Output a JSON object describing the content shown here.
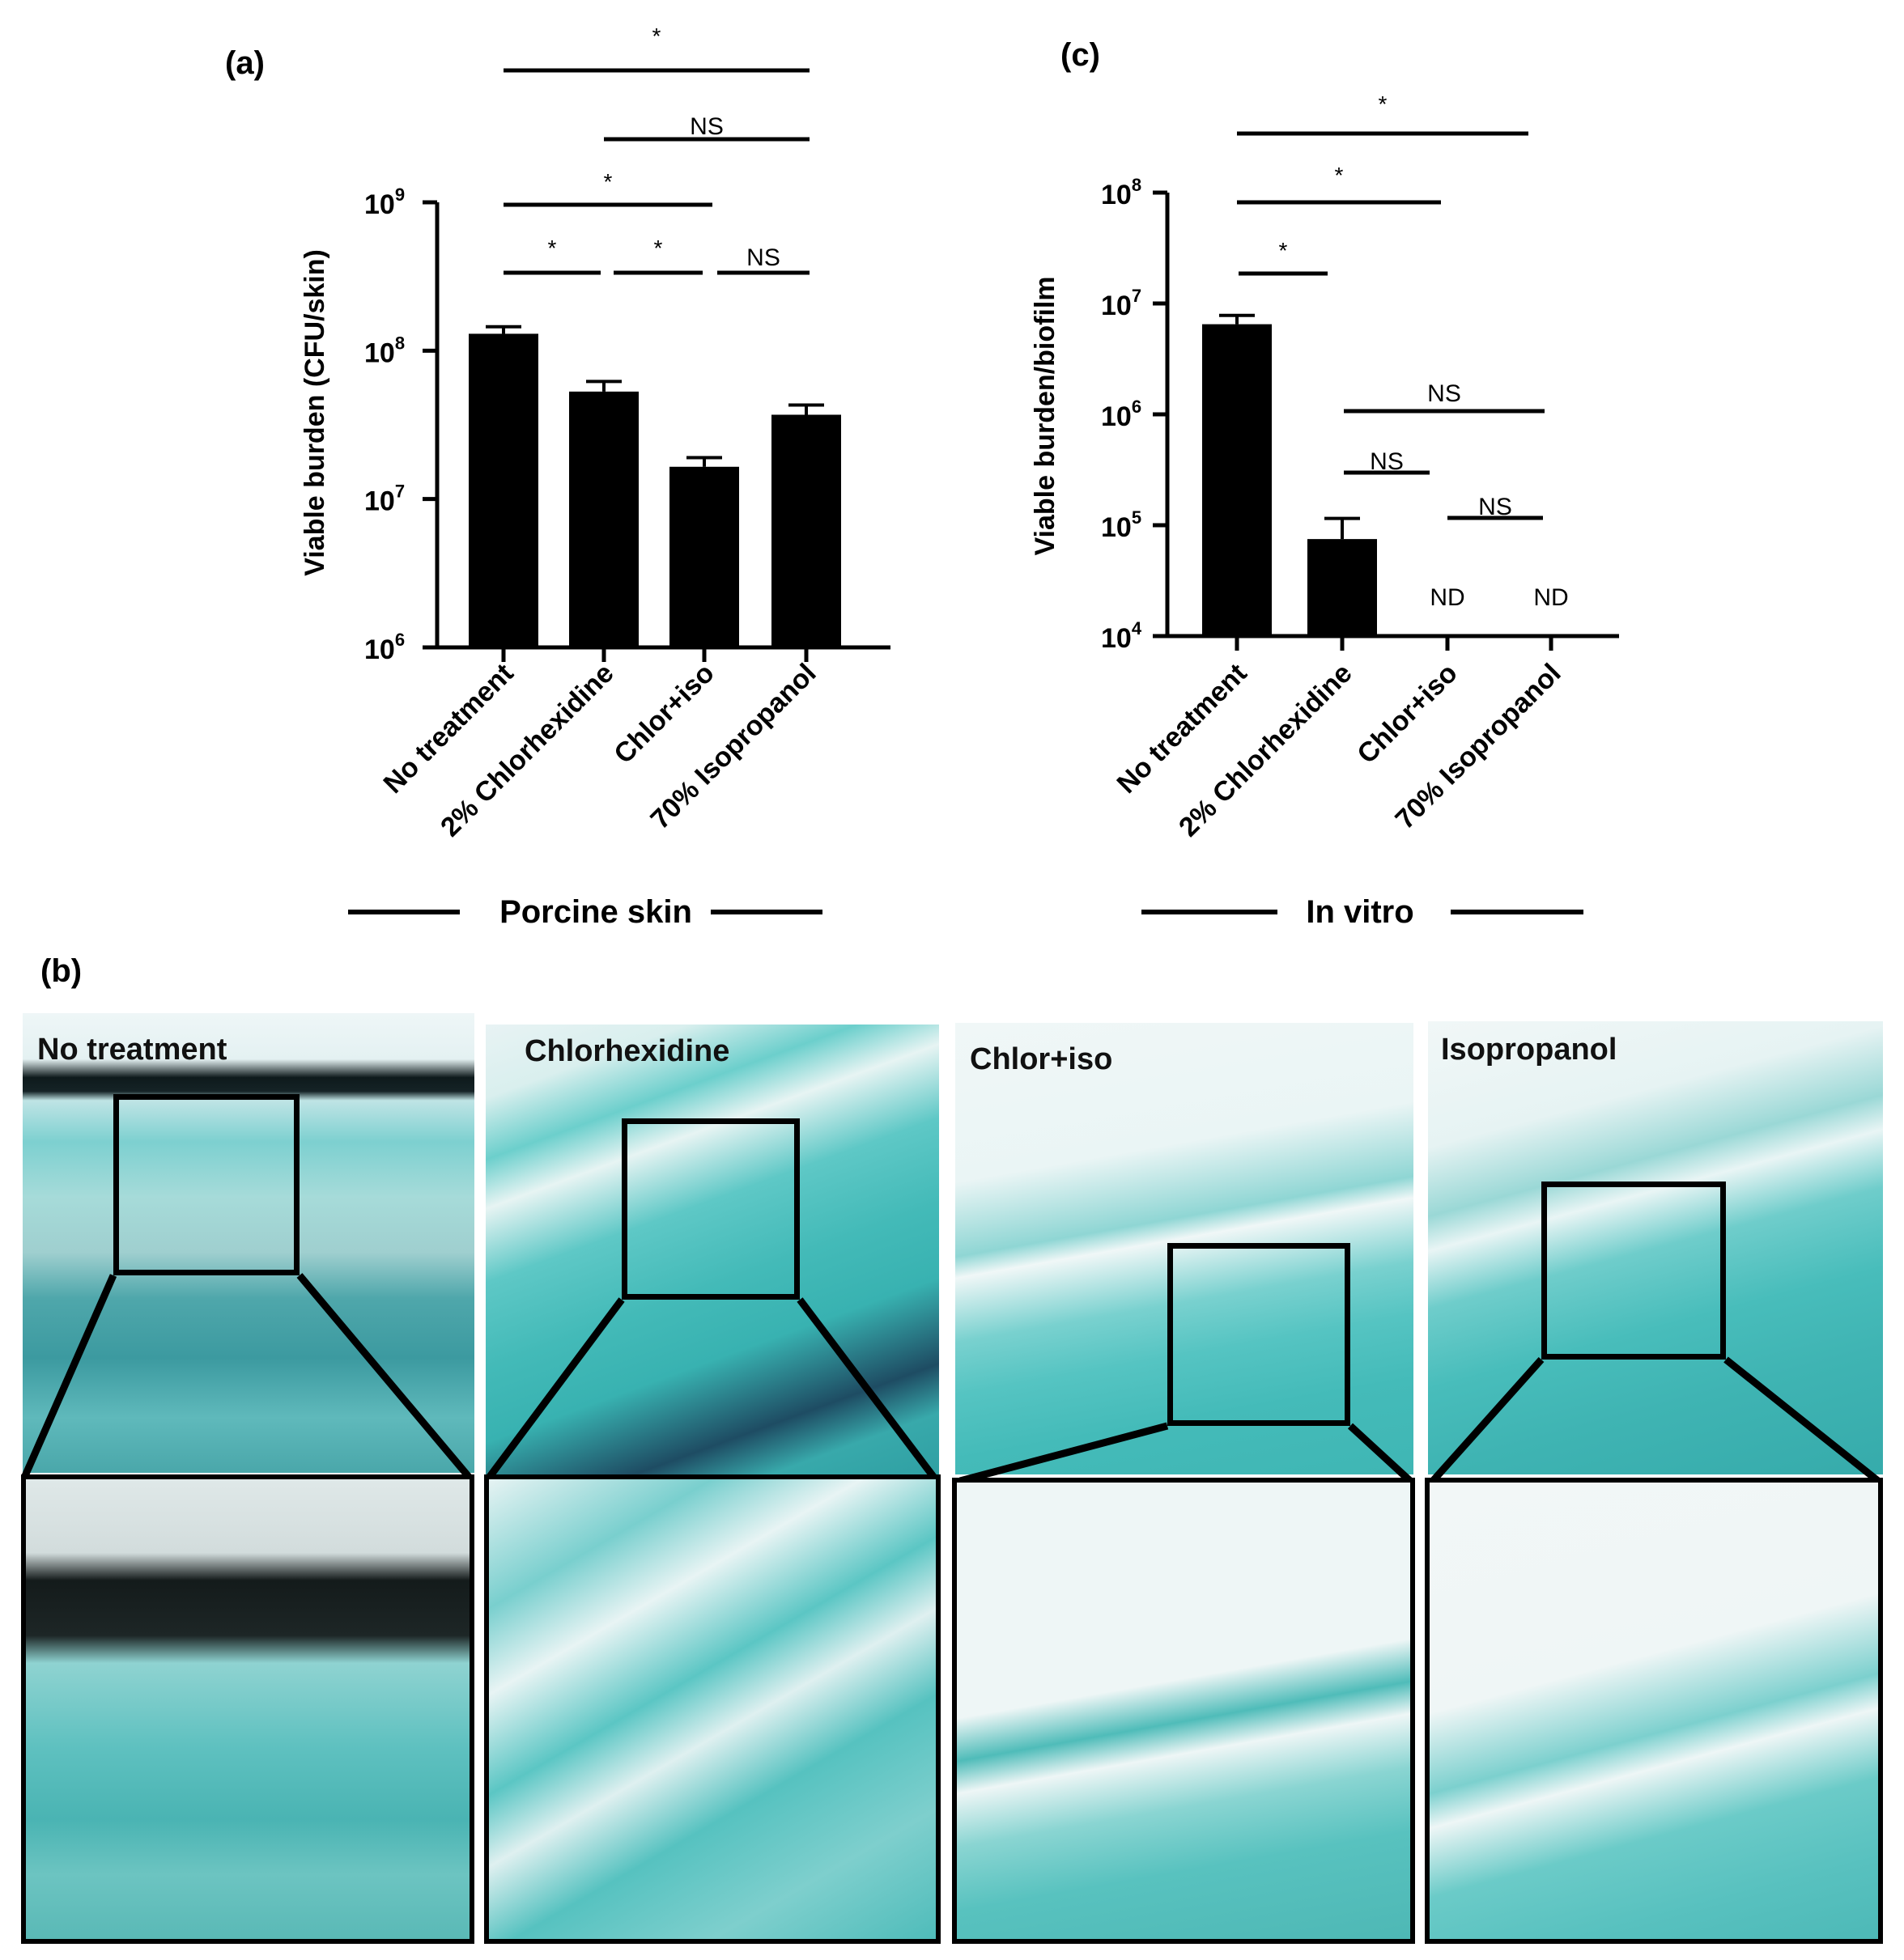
{
  "panels": {
    "a": {
      "letter": "(a)",
      "group_label": "Porcine skin",
      "ylabel": "Viable burden (CFU/skin)",
      "ytick_labels": [
        {
          "base": "10",
          "exp": "6"
        },
        {
          "base": "10",
          "exp": "7"
        },
        {
          "base": "10",
          "exp": "8"
        },
        {
          "base": "10",
          "exp": "9"
        }
      ],
      "sig": [
        {
          "text": "*"
        },
        {
          "text": "NS"
        },
        {
          "text": "*"
        },
        {
          "text": "*"
        },
        {
          "text": "*"
        },
        {
          "text": "NS"
        }
      ]
    },
    "b": {
      "letter": "(b)",
      "images": [
        {
          "label": "No treatment"
        },
        {
          "label": "Chlorhexidine"
        },
        {
          "label": "Chlor+iso"
        },
        {
          "label": "Isopropanol"
        }
      ]
    },
    "c": {
      "letter": "(c)",
      "group_label": "In vitro",
      "ylabel": "Viable burden/biofilm",
      "ytick_labels": [
        {
          "base": "10",
          "exp": "4"
        },
        {
          "base": "10",
          "exp": "5"
        },
        {
          "base": "10",
          "exp": "6"
        },
        {
          "base": "10",
          "exp": "7"
        },
        {
          "base": "10",
          "exp": "8"
        }
      ],
      "nd_labels": [
        "ND",
        "ND"
      ],
      "sig": [
        {
          "text": "*"
        },
        {
          "text": "*"
        },
        {
          "text": "*"
        },
        {
          "text": "NS"
        },
        {
          "text": "NS"
        },
        {
          "text": "NS"
        }
      ]
    }
  },
  "chart_data": [
    {
      "type": "bar",
      "panel": "a",
      "categories": [
        "No treatment",
        "2% Chlorhexidine",
        "Chlor+iso",
        "70% Isopropanol"
      ],
      "values": [
        130000000,
        53000000,
        16500000,
        37000000
      ],
      "error_upper": [
        145000000,
        62000000,
        19000000,
        43000000
      ],
      "ylabel": "Viable burden (CFU/skin)",
      "yscale": "log",
      "ylim": [
        1000000,
        1000000000
      ],
      "significance": [
        {
          "pair": [
            0,
            3
          ],
          "text": "*"
        },
        {
          "pair": [
            1,
            3
          ],
          "text": "NS"
        },
        {
          "pair": [
            0,
            2
          ],
          "text": "*"
        },
        {
          "pair": [
            0,
            1
          ],
          "text": "*"
        },
        {
          "pair": [
            1,
            2
          ],
          "text": "*"
        },
        {
          "pair": [
            2,
            3
          ],
          "text": "NS"
        }
      ]
    },
    {
      "type": "bar",
      "panel": "c",
      "categories": [
        "No treatment",
        "2% Chlorhexidine",
        "Chlor+iso",
        "70% Isopropanol"
      ],
      "values": [
        6500000,
        75000,
        null,
        null
      ],
      "error_upper": [
        7800000,
        115000,
        null,
        null
      ],
      "annotations": [
        "",
        "",
        "ND",
        "ND"
      ],
      "ylabel": "Viable burden/biofilm",
      "yscale": "log",
      "ylim": [
        10000,
        100000000
      ],
      "significance": [
        {
          "pair": [
            0,
            3
          ],
          "text": "*"
        },
        {
          "pair": [
            0,
            2
          ],
          "text": "*"
        },
        {
          "pair": [
            0,
            1
          ],
          "text": "*"
        },
        {
          "pair": [
            1,
            3
          ],
          "text": "NS"
        },
        {
          "pair": [
            1,
            2
          ],
          "text": "NS"
        },
        {
          "pair": [
            2,
            3
          ],
          "text": "NS"
        }
      ]
    }
  ]
}
